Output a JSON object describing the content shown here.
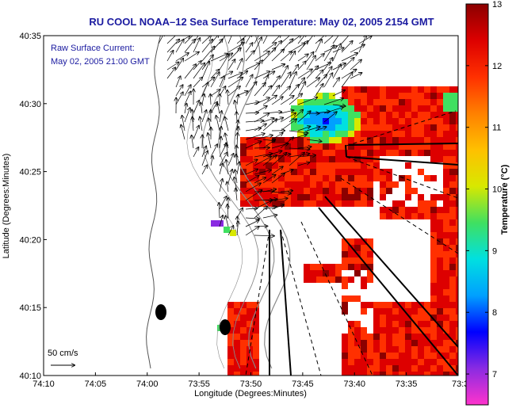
{
  "chart_data": {
    "type": "heatmap",
    "title": "RU COOL  NOAA–12  Sea Surface Temperature:  May 02, 2005 2154 GMT",
    "xlabel": "Longitude (Degrees:Minutes)",
    "ylabel": "Latitude (Degrees:Minutes)",
    "x_ticks": [
      "74:10",
      "74:05",
      "74:00",
      "73:55",
      "73:50",
      "73:45",
      "73:40",
      "73:35",
      "73:3"
    ],
    "y_ticks": [
      "40:10",
      "40:15",
      "40:20",
      "40:25",
      "40:30",
      "40:35"
    ],
    "x_range_minutes_west": [
      70,
      30
    ],
    "y_range_minutes_north": [
      10,
      35
    ],
    "colorbar": {
      "label": "Temperature (°C)",
      "range": [
        6.5,
        13
      ],
      "ticks": [
        "7",
        "8",
        "9",
        "10",
        "11",
        "12",
        "13"
      ],
      "colors": [
        "#ff33cc",
        "#8a2be2",
        "#0000ff",
        "#00a0ff",
        "#00e0e0",
        "#40e060",
        "#d8e800",
        "#ffc000",
        "#ff8000",
        "#ff3000",
        "#dd0000",
        "#8b0000"
      ]
    },
    "annotations": {
      "current_label_1": "Raw Surface Current:",
      "current_label_2": "May 02, 2005 21:00 GMT",
      "scale_label": "50 cm/s"
    }
  }
}
